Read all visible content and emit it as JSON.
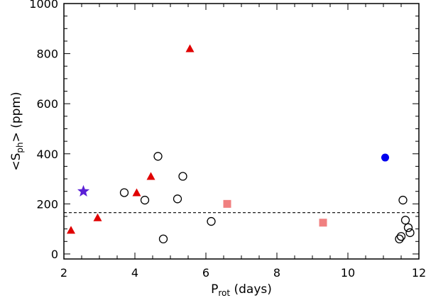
{
  "chart_data": {
    "type": "scatter",
    "xlabel_main": "P",
    "xlabel_sub": "rot",
    "xlabel_tail": " (days)",
    "ylabel_pre": "<S",
    "ylabel_sub": "ph",
    "ylabel_post": "> (ppm)",
    "xlim": [
      2,
      12
    ],
    "ylim": [
      -20,
      1000
    ],
    "x_ticks": [
      "2",
      "4",
      "6",
      "8",
      "10",
      "12"
    ],
    "y_ticks": [
      "0",
      "200",
      "400",
      "600",
      "800",
      "1000"
    ],
    "reference_line": {
      "y": 165,
      "style": "dashed"
    },
    "series": [
      {
        "marker": "triangle",
        "color": "#e00000",
        "points": [
          [
            2.2,
            95
          ],
          [
            2.95,
            145
          ],
          [
            4.05,
            245
          ],
          [
            4.45,
            310
          ],
          [
            5.55,
            820
          ]
        ]
      },
      {
        "marker": "open-circle",
        "color": "#000000",
        "points": [
          [
            3.7,
            245
          ],
          [
            4.28,
            215
          ],
          [
            4.65,
            390
          ],
          [
            4.8,
            60
          ],
          [
            5.2,
            220
          ],
          [
            5.35,
            310
          ],
          [
            6.15,
            130
          ],
          [
            11.45,
            60
          ],
          [
            11.5,
            70
          ],
          [
            11.55,
            215
          ],
          [
            11.62,
            135
          ],
          [
            11.7,
            105
          ],
          [
            11.75,
            85
          ]
        ]
      },
      {
        "marker": "square",
        "color": "#f08080",
        "points": [
          [
            6.6,
            200
          ],
          [
            9.3,
            125
          ]
        ]
      },
      {
        "marker": "filled-circle",
        "color": "#0000ee",
        "points": [
          [
            11.05,
            385
          ]
        ]
      },
      {
        "marker": "star",
        "color": "#5a1fd6",
        "points": [
          [
            2.55,
            250
          ]
        ]
      }
    ]
  }
}
